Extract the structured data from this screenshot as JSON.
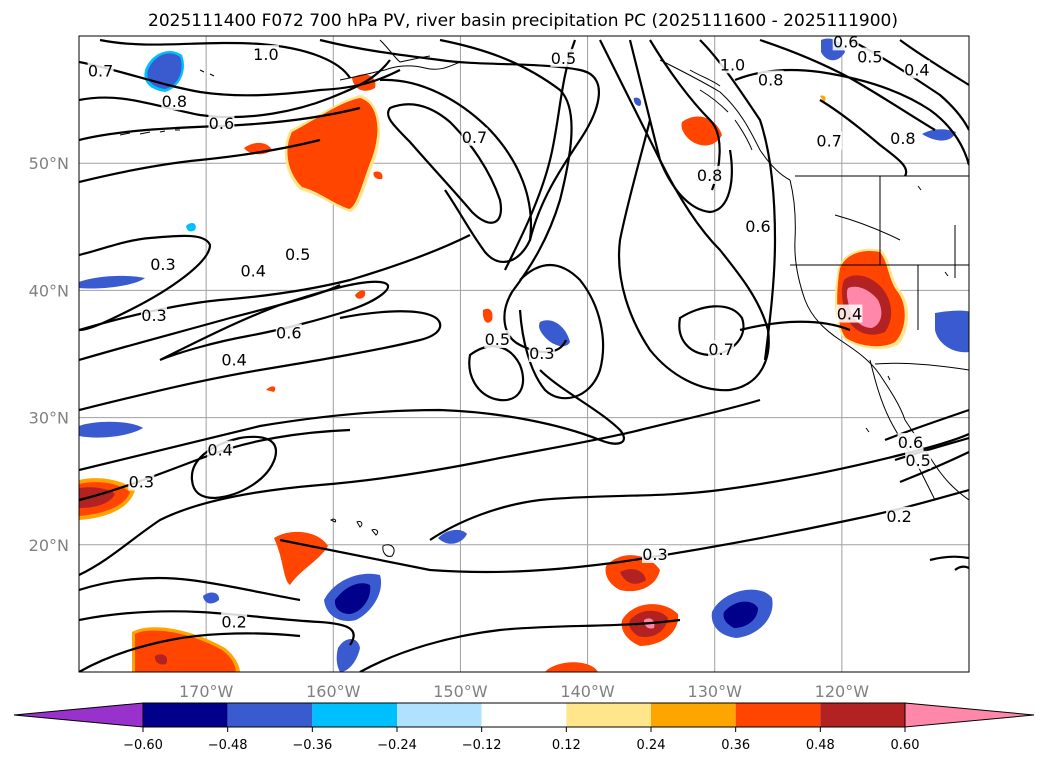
{
  "title": "2025111400 F072 700 hPa PV, river basin precipitation PC (2025111600 - 2025111900)",
  "map": {
    "projection": "PlateCarree",
    "extent_lon": [
      -180,
      -110
    ],
    "extent_lat": [
      10,
      60
    ],
    "gridlines": true,
    "lat_labels": [
      {
        "lat": 50,
        "label": "50°N"
      },
      {
        "lat": 40,
        "label": "40°N"
      },
      {
        "lat": 30,
        "label": "30°N"
      },
      {
        "lat": 20,
        "label": "20°N"
      }
    ],
    "lon_labels": [
      {
        "lon": -170,
        "label": "170°W"
      },
      {
        "lon": -160,
        "label": "160°W"
      },
      {
        "lon": -150,
        "label": "150°W"
      },
      {
        "lon": -140,
        "label": "140°W"
      },
      {
        "lon": -130,
        "label": "130°W"
      },
      {
        "lon": -120,
        "label": "120°W"
      }
    ],
    "pv_contour_labels": [
      {
        "text": "0.7",
        "lon": -178.3,
        "lat": 57.2
      },
      {
        "text": "1.0",
        "lon": -165.3,
        "lat": 58.5
      },
      {
        "text": "0.8",
        "lon": -172.5,
        "lat": 54.8
      },
      {
        "text": "0.6",
        "lon": -168.8,
        "lat": 53.1
      },
      {
        "text": "0.7",
        "lon": -148.9,
        "lat": 52.0
      },
      {
        "text": "0.5",
        "lon": -141.9,
        "lat": 58.2
      },
      {
        "text": "1.0",
        "lon": -128.6,
        "lat": 57.7
      },
      {
        "text": "0.8",
        "lon": -125.6,
        "lat": 56.5
      },
      {
        "text": "0.6",
        "lon": -119.7,
        "lat": 59.5
      },
      {
        "text": "0.5",
        "lon": -117.8,
        "lat": 58.3
      },
      {
        "text": "0.4",
        "lon": -114.1,
        "lat": 57.3
      },
      {
        "text": "0.7",
        "lon": -121.0,
        "lat": 51.7
      },
      {
        "text": "0.8",
        "lon": -115.2,
        "lat": 51.9
      },
      {
        "text": "0.8",
        "lon": -130.4,
        "lat": 49.0
      },
      {
        "text": "0.6",
        "lon": -126.6,
        "lat": 45.0
      },
      {
        "text": "0.3",
        "lon": -173.4,
        "lat": 42.0
      },
      {
        "text": "0.4",
        "lon": -166.3,
        "lat": 41.5
      },
      {
        "text": "0.5",
        "lon": -162.8,
        "lat": 42.8
      },
      {
        "text": "0.3",
        "lon": -174.1,
        "lat": 38.0
      },
      {
        "text": "0.6",
        "lon": -163.5,
        "lat": 36.6
      },
      {
        "text": "0.4",
        "lon": -167.8,
        "lat": 34.5
      },
      {
        "text": "0.5",
        "lon": -147.1,
        "lat": 36.1
      },
      {
        "text": "0.3",
        "lon": -143.6,
        "lat": 35.0
      },
      {
        "text": "0.7",
        "lon": -129.5,
        "lat": 35.3
      },
      {
        "text": "0.4",
        "lon": -119.4,
        "lat": 38.1
      },
      {
        "text": "0.4",
        "lon": -168.9,
        "lat": 27.4
      },
      {
        "text": "0.3",
        "lon": -175.1,
        "lat": 24.9
      },
      {
        "text": "0.6",
        "lon": -114.6,
        "lat": 28.0
      },
      {
        "text": "0.5",
        "lon": -114.0,
        "lat": 26.6
      },
      {
        "text": "0.2",
        "lon": -115.5,
        "lat": 22.2
      },
      {
        "text": "0.3",
        "lon": -134.7,
        "lat": 19.2
      },
      {
        "text": "0.2",
        "lon": -167.8,
        "lat": 13.9
      }
    ]
  },
  "colorbar": {
    "ticks": [
      "−0.60",
      "−0.48",
      "−0.36",
      "−0.24",
      "−0.12",
      "0.12",
      "0.24",
      "0.36",
      "0.48",
      "0.60"
    ],
    "tick_values": [
      -0.6,
      -0.48,
      -0.36,
      -0.24,
      -0.12,
      0.12,
      0.24,
      0.36,
      0.48,
      0.6
    ],
    "colors": [
      "#9932cc",
      "#00008b",
      "#3a5bd0",
      "#00bfff",
      "#b0e2ff",
      "#ffffff",
      "#ffe68a",
      "#ffa500",
      "#ff4500",
      "#b22222",
      "#ff88aa"
    ]
  },
  "colors": {
    "contour_line": "#000000",
    "coastline": "#000000",
    "gridline": "#a0a0a0",
    "gridlabel": "#808080"
  }
}
